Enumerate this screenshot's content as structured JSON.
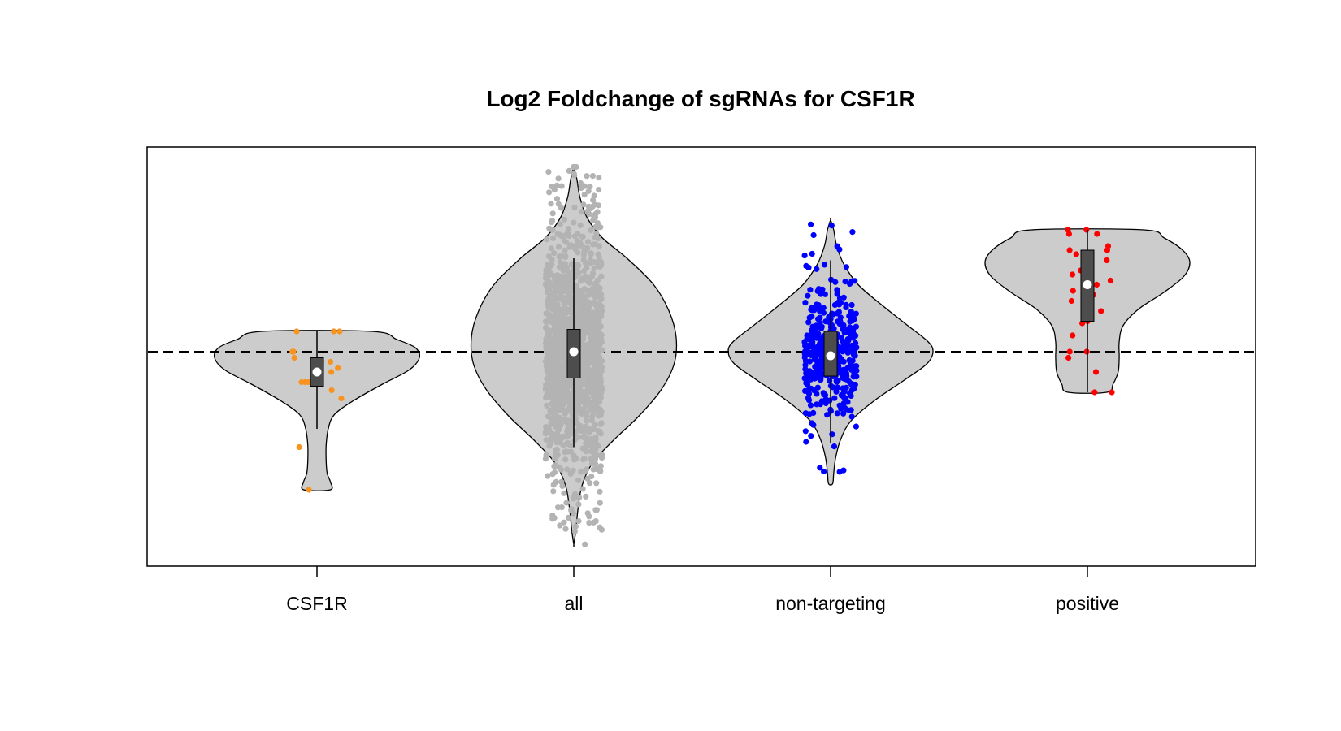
{
  "chart_data": {
    "type": "violin",
    "title": "Log2 Foldchange of sgRNAs for CSF1R",
    "xlabel": "",
    "ylabel": "",
    "categories": [
      "CSF1R",
      "all",
      "non-targeting",
      "positive"
    ],
    "y_axis_shown": false,
    "ylim": [
      -1.0,
      1.0
    ],
    "reference_line": {
      "y": 0,
      "style": "dashed",
      "color": "#000000"
    },
    "grid": false,
    "colors": {
      "violin_fill": "#cccccc",
      "box_fill": "#4d4d4d",
      "median_marker": "#ffffff",
      "CSF1R_points": "#f7931e",
      "all_points": "#b3b3b3",
      "non-targeting_points": "#0000ff",
      "positive_points": "#ff0000"
    },
    "groups": [
      {
        "name": "CSF1R",
        "point_color": "#f7931e",
        "violin_range": [
          -0.68,
          0.1
        ],
        "median": -0.1,
        "q1": -0.17,
        "q3": -0.03,
        "whisker_low": -0.38,
        "whisker_high": 0.1,
        "points": [
          0.1,
          0.1,
          0.1,
          0.0,
          0.0,
          -0.03,
          -0.05,
          -0.05,
          -0.08,
          -0.1,
          -0.15,
          -0.15,
          -0.15,
          -0.19,
          -0.23,
          -0.47,
          -0.68
        ]
      },
      {
        "name": "all",
        "point_color": "#b3b3b3",
        "violin_range": [
          -0.95,
          0.91
        ],
        "median": 0.0,
        "q1": -0.13,
        "q3": 0.11,
        "whisker_low": -0.47,
        "whisker_high": 0.46,
        "point_count": "dense"
      },
      {
        "name": "non-targeting",
        "point_color": "#0000ff",
        "violin_range": [
          -0.65,
          0.65
        ],
        "median": -0.02,
        "q1": -0.12,
        "q3": 0.1,
        "whisker_low": -0.45,
        "whisker_high": 0.45,
        "point_count": "many"
      },
      {
        "name": "positive",
        "point_color": "#ff0000",
        "violin_range": [
          -0.2,
          0.6
        ],
        "median": 0.33,
        "q1": 0.15,
        "q3": 0.5,
        "whisker_low": -0.2,
        "whisker_high": 0.6,
        "points": [
          0.6,
          0.6,
          0.58,
          0.58,
          0.52,
          0.5,
          0.5,
          0.48,
          0.45,
          0.4,
          0.38,
          0.35,
          0.33,
          0.3,
          0.28,
          0.25,
          0.2,
          0.15,
          0.14,
          0.08,
          0.0,
          0.0,
          -0.03,
          -0.1,
          -0.2,
          -0.2
        ]
      }
    ]
  }
}
